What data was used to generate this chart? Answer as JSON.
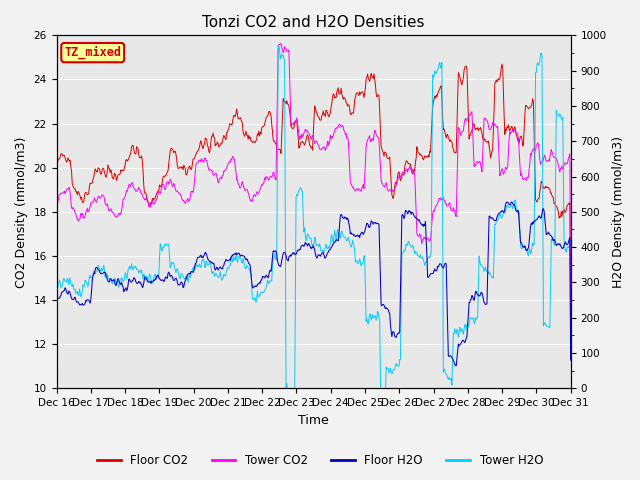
{
  "title": "Tonzi CO2 and H2O Densities",
  "xlabel": "Time",
  "ylabel_left": "CO2 Density (mmol/m3)",
  "ylabel_right": "H2O Density (mmol/m3)",
  "ylim_left": [
    10,
    26
  ],
  "ylim_right": [
    0,
    1000
  ],
  "yticks_left": [
    10,
    12,
    14,
    16,
    18,
    20,
    22,
    24,
    26
  ],
  "yticks_right": [
    0,
    100,
    200,
    300,
    400,
    500,
    600,
    700,
    800,
    900,
    1000
  ],
  "annotation_text": "TZ_mixed",
  "annotation_color": "#cc0000",
  "annotation_bg": "#ffff99",
  "annotation_edgecolor": "#cc0000",
  "floor_co2_color": "#dd0000",
  "tower_co2_color": "#ff00ff",
  "floor_h2o_color": "#0000cc",
  "tower_h2o_color": "#00ccff",
  "legend_entries": [
    "Floor CO2",
    "Tower CO2",
    "Floor H2O",
    "Tower H2O"
  ],
  "background_color": "#e8e8e8",
  "fig_background": "#f2f2f2",
  "grid_color": "#ffffff",
  "title_fontsize": 11,
  "axis_label_fontsize": 9,
  "tick_fontsize": 7.5,
  "legend_fontsize": 8.5,
  "line_width": 0.7,
  "num_points": 720,
  "seed": 42
}
